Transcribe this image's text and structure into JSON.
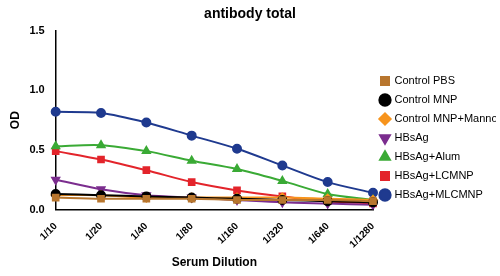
{
  "chart_data": {
    "type": "line",
    "title": "antibody total",
    "x_label": "Serum Dilution",
    "y_label": "OD",
    "categories": [
      "1/10",
      "1/20",
      "1/40",
      "1/80",
      "1/160",
      "1/320",
      "1/640",
      "1/1280"
    ],
    "series": [
      {
        "name": "Control PBS",
        "color": "#b8762e",
        "marker": "square",
        "values": [
          0.1,
          0.09,
          0.09,
          0.09,
          0.08,
          0.08,
          0.08,
          0.07
        ]
      },
      {
        "name": "Control MNP",
        "color": "#000000",
        "marker": "circle",
        "values": [
          0.13,
          0.12,
          0.11,
          0.1,
          0.09,
          0.08,
          0.07,
          0.06
        ]
      },
      {
        "name": "Control MNP+Mannose",
        "color": "#f7941d",
        "marker": "diamond",
        "values": [
          0.12,
          0.12,
          0.1,
          0.1,
          0.1,
          0.1,
          0.09,
          0.08
        ]
      },
      {
        "name": "HBsAg",
        "color": "#7b2d8e",
        "marker": "triangle_down",
        "values": [
          0.25,
          0.17,
          0.12,
          0.1,
          0.08,
          0.06,
          0.05,
          0.04
        ]
      },
      {
        "name": "HBsAg+Alum",
        "color": "#3aaa35",
        "marker": "triangle",
        "values": [
          0.53,
          0.54,
          0.49,
          0.41,
          0.34,
          0.24,
          0.13,
          0.08
        ]
      },
      {
        "name": "HBsAg+LCMNP",
        "color": "#e3242b",
        "marker": "square",
        "values": [
          0.49,
          0.42,
          0.33,
          0.23,
          0.16,
          0.11,
          0.07,
          0.05
        ]
      },
      {
        "name": "HBsAg+MLCMNP",
        "color": "#1f3a8f",
        "marker": "circle",
        "values": [
          0.82,
          0.81,
          0.73,
          0.62,
          0.51,
          0.37,
          0.23,
          0.14
        ]
      }
    ],
    "ylim": [
      0,
      1.5
    ],
    "yticks": [
      {
        "value": 0,
        "label": "0.0"
      },
      0.5,
      {
        "value": 1,
        "label": "1.0"
      },
      1.5
    ],
    "grid": false,
    "legend": "right"
  }
}
